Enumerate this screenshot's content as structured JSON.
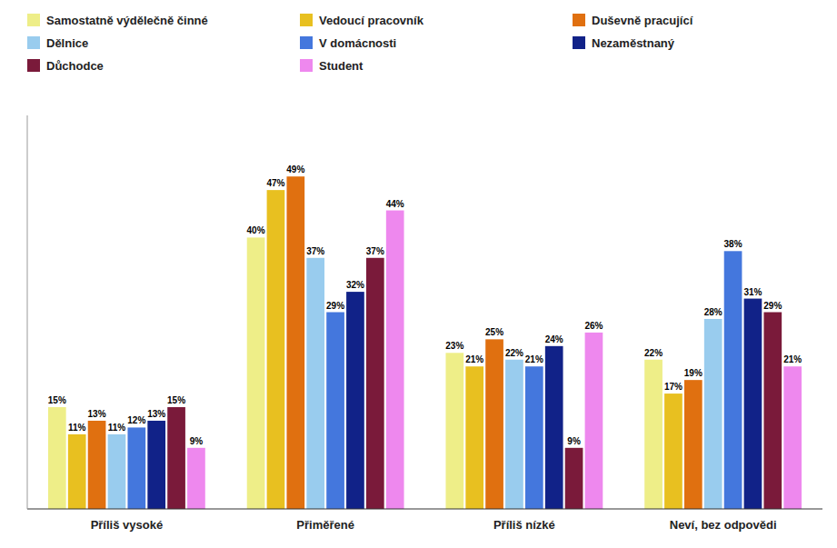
{
  "chart_data": {
    "type": "bar",
    "categories": [
      "Příliš vysoké",
      "Přiměřené",
      "Příliš nízké",
      "Neví, bez odpovědi"
    ],
    "series": [
      {
        "name": "Samostatně výdělečně činné",
        "color": "#EEEE88",
        "values": [
          15,
          40,
          23,
          22
        ],
        "value_labels": [
          "15%",
          "40%",
          "23%",
          "22%"
        ]
      },
      {
        "name": "Vedoucí pracovník",
        "color": "#E8C020",
        "values": [
          11,
          47,
          21,
          17
        ],
        "value_labels": [
          "11%",
          "47%",
          "21%",
          "17%"
        ]
      },
      {
        "name": "Duševně pracující",
        "color": "#E07010",
        "values": [
          13,
          49,
          25,
          19
        ],
        "value_labels": [
          "13%",
          "49%",
          "25%",
          "19%"
        ]
      },
      {
        "name": "Dělnice",
        "color": "#99CCEE",
        "values": [
          11,
          37,
          22,
          28
        ],
        "value_labels": [
          "11%",
          "37%",
          "22%",
          "28%"
        ]
      },
      {
        "name": "V domácnosti",
        "color": "#4477DD",
        "values": [
          12,
          29,
          21,
          38
        ],
        "value_labels": [
          "12%",
          "29%",
          "21%",
          "38%"
        ]
      },
      {
        "name": "Nezaměstnaný",
        "color": "#112288",
        "values": [
          13,
          32,
          24,
          31
        ],
        "value_labels": [
          "13%",
          "32%",
          "24%",
          "31%"
        ]
      },
      {
        "name": "Důchodce",
        "color": "#7A1A3A",
        "values": [
          15,
          37,
          9,
          29
        ],
        "value_labels": [
          "15%",
          "37%",
          "9%",
          "29%"
        ]
      },
      {
        "name": "Student",
        "color": "#EE88EE",
        "values": [
          9,
          44,
          26,
          21
        ],
        "value_labels": [
          "9%",
          "44%",
          "26%",
          "21%"
        ]
      }
    ],
    "ylim": [
      0,
      58
    ],
    "grid": false,
    "legend": "top",
    "data_labels": true,
    "tick_labels": "x"
  }
}
